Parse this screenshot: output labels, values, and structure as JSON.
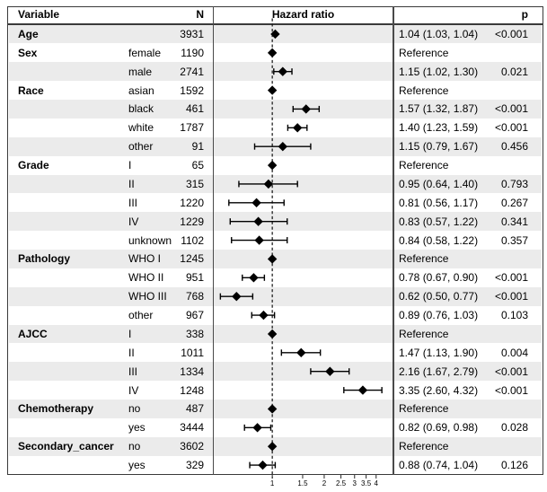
{
  "header": {
    "variable": "Variable",
    "n": "N",
    "hazard_ratio": "Hazard ratio",
    "p": "p"
  },
  "colors": {
    "stripe": "#ebebeb",
    "border": "#3a3a3a",
    "marker": "#000000",
    "reference_line": "#1a1a1a",
    "text": "#000000"
  },
  "chart_data": {
    "type": "forest",
    "title": "Hazard ratio",
    "x_scale": "log",
    "x_domain": [
      0.455,
      5.01
    ],
    "x_ticks": [
      1,
      1.5,
      2,
      2.5,
      3,
      3.5,
      4
    ],
    "reference_line_value": 1,
    "grid": false,
    "rows": [
      {
        "variable": "Age",
        "level": "",
        "n": "3931",
        "hr": 1.04,
        "ci_low": 1.03,
        "ci_high": 1.04,
        "reference": false,
        "estimate": "1.04 (1.03, 1.04)",
        "p": "<0.001"
      },
      {
        "variable": "Sex",
        "level": "female",
        "n": "1190",
        "hr": 1.0,
        "ci_low": null,
        "ci_high": null,
        "reference": true,
        "estimate": "Reference",
        "p": ""
      },
      {
        "variable": "",
        "level": "male",
        "n": "2741",
        "hr": 1.15,
        "ci_low": 1.02,
        "ci_high": 1.3,
        "reference": false,
        "estimate": "1.15 (1.02, 1.30)",
        "p": "0.021"
      },
      {
        "variable": "Race",
        "level": "asian",
        "n": "1592",
        "hr": 1.0,
        "ci_low": null,
        "ci_high": null,
        "reference": true,
        "estimate": "Reference",
        "p": ""
      },
      {
        "variable": "",
        "level": "black",
        "n": "461",
        "hr": 1.57,
        "ci_low": 1.32,
        "ci_high": 1.87,
        "reference": false,
        "estimate": "1.57 (1.32, 1.87)",
        "p": "<0.001"
      },
      {
        "variable": "",
        "level": "white",
        "n": "1787",
        "hr": 1.4,
        "ci_low": 1.23,
        "ci_high": 1.59,
        "reference": false,
        "estimate": "1.40 (1.23, 1.59)",
        "p": "<0.001"
      },
      {
        "variable": "",
        "level": "other",
        "n": "91",
        "hr": 1.15,
        "ci_low": 0.79,
        "ci_high": 1.67,
        "reference": false,
        "estimate": "1.15 (0.79, 1.67)",
        "p": "0.456"
      },
      {
        "variable": "Grade",
        "level": "I",
        "n": "65",
        "hr": 1.0,
        "ci_low": null,
        "ci_high": null,
        "reference": true,
        "estimate": "Reference",
        "p": ""
      },
      {
        "variable": "",
        "level": "II",
        "n": "315",
        "hr": 0.95,
        "ci_low": 0.64,
        "ci_high": 1.4,
        "reference": false,
        "estimate": "0.95 (0.64, 1.40)",
        "p": "0.793"
      },
      {
        "variable": "",
        "level": "III",
        "n": "1220",
        "hr": 0.81,
        "ci_low": 0.56,
        "ci_high": 1.17,
        "reference": false,
        "estimate": "0.81 (0.56, 1.17)",
        "p": "0.267"
      },
      {
        "variable": "",
        "level": "IV",
        "n": "1229",
        "hr": 0.83,
        "ci_low": 0.57,
        "ci_high": 1.22,
        "reference": false,
        "estimate": "0.83 (0.57, 1.22)",
        "p": "0.341"
      },
      {
        "variable": "",
        "level": "unknown",
        "n": "1102",
        "hr": 0.84,
        "ci_low": 0.58,
        "ci_high": 1.22,
        "reference": false,
        "estimate": "0.84 (0.58, 1.22)",
        "p": "0.357"
      },
      {
        "variable": "Pathology",
        "level": "WHO I",
        "n": "1245",
        "hr": 1.0,
        "ci_low": null,
        "ci_high": null,
        "reference": true,
        "estimate": "Reference",
        "p": ""
      },
      {
        "variable": "",
        "level": "WHO II",
        "n": "951",
        "hr": 0.78,
        "ci_low": 0.67,
        "ci_high": 0.9,
        "reference": false,
        "estimate": "0.78 (0.67, 0.90)",
        "p": "<0.001"
      },
      {
        "variable": "",
        "level": "WHO III",
        "n": "768",
        "hr": 0.62,
        "ci_low": 0.5,
        "ci_high": 0.77,
        "reference": false,
        "estimate": "0.62 (0.50, 0.77)",
        "p": "<0.001"
      },
      {
        "variable": "",
        "level": "other",
        "n": "967",
        "hr": 0.89,
        "ci_low": 0.76,
        "ci_high": 1.03,
        "reference": false,
        "estimate": "0.89 (0.76, 1.03)",
        "p": "0.103"
      },
      {
        "variable": "AJCC",
        "level": "I",
        "n": "338",
        "hr": 1.0,
        "ci_low": null,
        "ci_high": null,
        "reference": true,
        "estimate": "Reference",
        "p": ""
      },
      {
        "variable": "",
        "level": "II",
        "n": "1011",
        "hr": 1.47,
        "ci_low": 1.13,
        "ci_high": 1.9,
        "reference": false,
        "estimate": "1.47 (1.13, 1.90)",
        "p": "0.004"
      },
      {
        "variable": "",
        "level": "III",
        "n": "1334",
        "hr": 2.16,
        "ci_low": 1.67,
        "ci_high": 2.79,
        "reference": false,
        "estimate": "2.16 (1.67, 2.79)",
        "p": "<0.001"
      },
      {
        "variable": "",
        "level": "IV",
        "n": "1248",
        "hr": 3.35,
        "ci_low": 2.6,
        "ci_high": 4.32,
        "reference": false,
        "estimate": "3.35 (2.60, 4.32)",
        "p": "<0.001"
      },
      {
        "variable": "Chemotherapy",
        "level": "no",
        "n": "487",
        "hr": 1.0,
        "ci_low": null,
        "ci_high": null,
        "reference": true,
        "estimate": "Reference",
        "p": ""
      },
      {
        "variable": "",
        "level": "yes",
        "n": "3444",
        "hr": 0.82,
        "ci_low": 0.69,
        "ci_high": 0.98,
        "reference": false,
        "estimate": "0.82 (0.69, 0.98)",
        "p": "0.028"
      },
      {
        "variable": "Secondary_cancer",
        "level": "no",
        "n": "3602",
        "hr": 1.0,
        "ci_low": null,
        "ci_high": null,
        "reference": true,
        "estimate": "Reference",
        "p": ""
      },
      {
        "variable": "",
        "level": "yes",
        "n": "329",
        "hr": 0.88,
        "ci_low": 0.74,
        "ci_high": 1.04,
        "reference": false,
        "estimate": "0.88 (0.74, 1.04)",
        "p": "0.126"
      }
    ]
  }
}
